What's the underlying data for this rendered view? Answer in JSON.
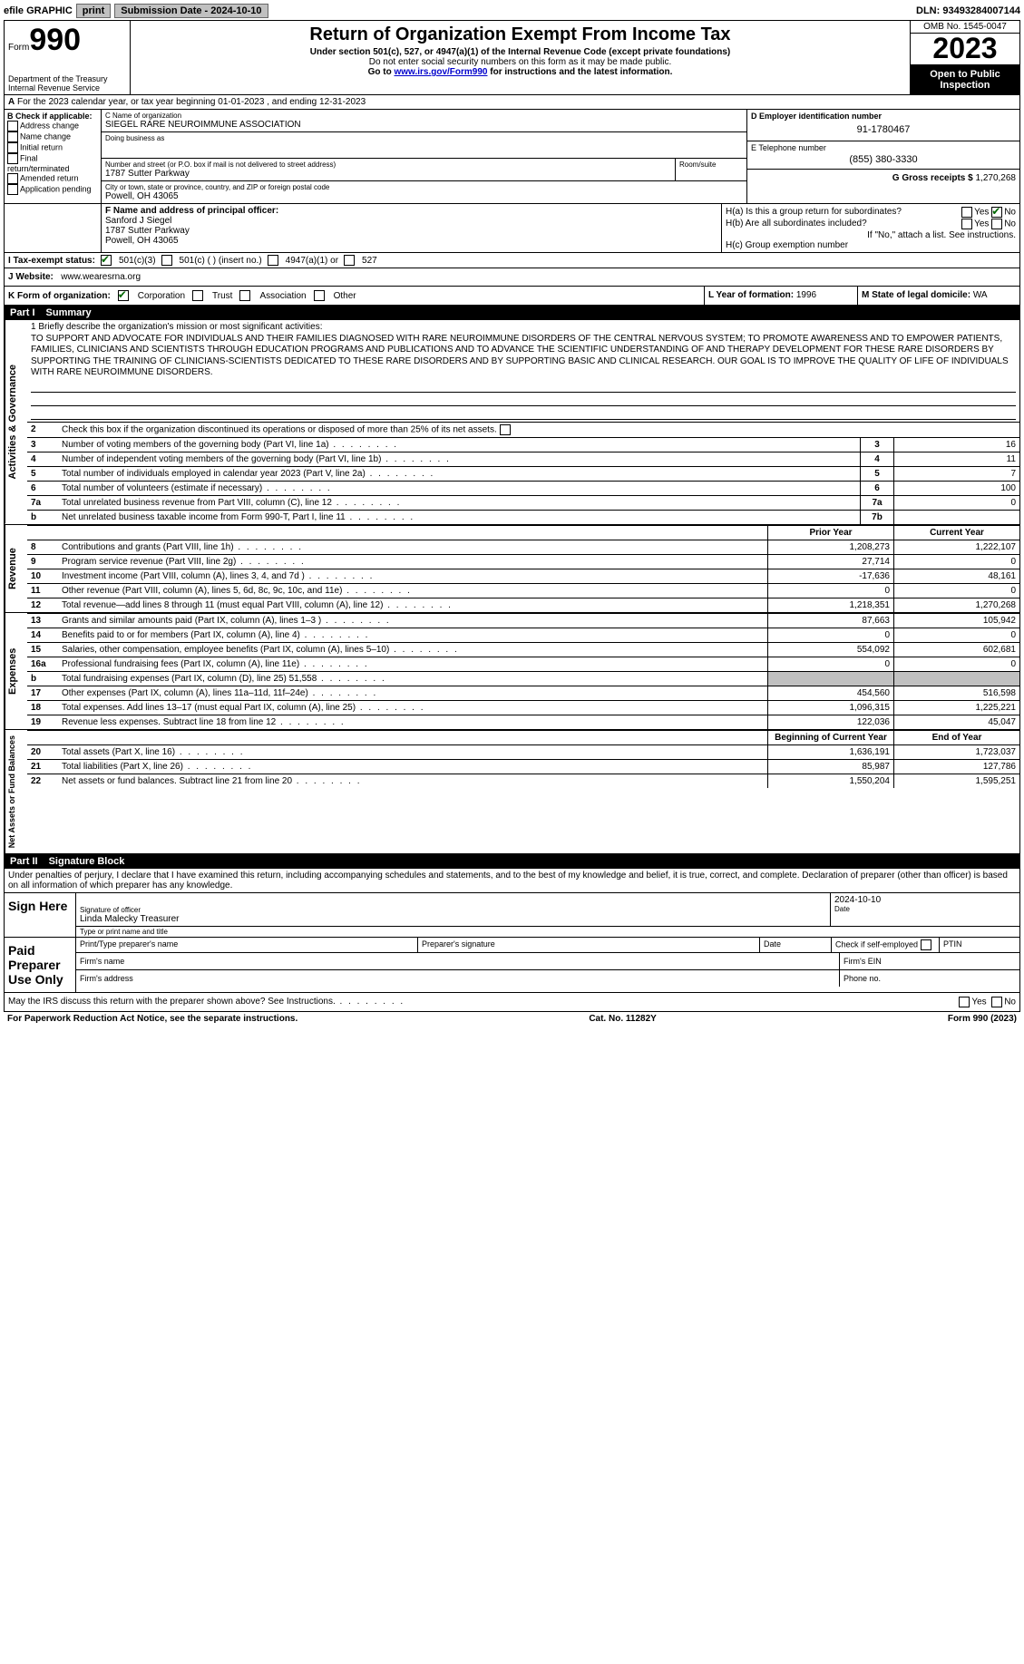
{
  "topbar": {
    "efile": "efile GRAPHIC",
    "print": "print",
    "sub_label": "Submission Date - 2024-10-10",
    "dln": "DLN: 93493284007144"
  },
  "header": {
    "form_word": "Form",
    "form_num": "990",
    "dept": "Department of the Treasury\nInternal Revenue Service",
    "title": "Return of Organization Exempt From Income Tax",
    "sub": "Under section 501(c), 527, or 4947(a)(1) of the Internal Revenue Code (except private foundations)",
    "warn": "Do not enter social security numbers on this form as it may be made public.",
    "goto_pre": "Go to ",
    "goto_link": "www.irs.gov/Form990",
    "goto_post": " for instructions and the latest information.",
    "omb": "OMB No. 1545-0047",
    "year": "2023",
    "open": "Open to Public Inspection"
  },
  "line_a": "For the 2023 calendar year, or tax year beginning 01-01-2023  , and ending 12-31-2023",
  "box_b": {
    "header": "B Check if applicable:",
    "items": [
      "Address change",
      "Name change",
      "Initial return",
      "Final return/terminated",
      "Amended return",
      "Application pending"
    ]
  },
  "box_c": {
    "label_name": "C Name of organization",
    "name": "SIEGEL RARE NEUROIMMUNE ASSOCIATION",
    "dba_label": "Doing business as",
    "dba": "",
    "street_label": "Number and street (or P.O. box if mail is not delivered to street address)",
    "room_label": "Room/suite",
    "street": "1787 Sutter Parkway",
    "city_label": "City or town, state or province, country, and ZIP or foreign postal code",
    "city": "Powell, OH  43065"
  },
  "box_d": {
    "label": "D Employer identification number",
    "value": "91-1780467"
  },
  "box_e": {
    "label": "E Telephone number",
    "value": "(855) 380-3330"
  },
  "box_g": {
    "label": "G Gross receipts $",
    "value": "1,270,268"
  },
  "box_f": {
    "label": "F  Name and address of principal officer:",
    "name": "Sanford J Siegel",
    "addr1": "1787 Sutter Parkway",
    "addr2": "Powell, OH  43065"
  },
  "box_h": {
    "a_q": "H(a)  Is this a group return for subordinates?",
    "b_q": "H(b)  Are all subordinates included?",
    "b_note": "If \"No,\" attach a list. See instructions.",
    "c_q": "H(c)  Group exemption number",
    "yes": "Yes",
    "no": "No"
  },
  "line_i": {
    "label": "I  Tax-exempt status:",
    "o1": "501(c)(3)",
    "o2": "501(c) (  ) (insert no.)",
    "o3": "4947(a)(1) or",
    "o4": "527"
  },
  "line_j": {
    "label": "J  Website:",
    "value": "www.wearesrna.org"
  },
  "line_k": {
    "label": "K Form of organization:",
    "o1": "Corporation",
    "o2": "Trust",
    "o3": "Association",
    "o4": "Other"
  },
  "line_l": {
    "label": "L Year of formation:",
    "value": "1996"
  },
  "line_m": {
    "label": "M State of legal domicile:",
    "value": "WA"
  },
  "part1": {
    "num": "Part I",
    "title": "Summary"
  },
  "mission": {
    "prompt": "1  Briefly describe the organization's mission or most significant activities:",
    "text": "TO SUPPORT AND ADVOCATE FOR INDIVIDUALS AND THEIR FAMILIES DIAGNOSED WITH RARE NEUROIMMUNE DISORDERS OF THE CENTRAL NERVOUS SYSTEM; TO PROMOTE AWARENESS AND TO EMPOWER PATIENTS, FAMILIES, CLINICIANS AND SCIENTISTS THROUGH EDUCATION PROGRAMS AND PUBLICATIONS AND TO ADVANCE THE SCIENTIFIC UNDERSTANDING OF AND THERAPY DEVELOPMENT FOR THESE RARE DISORDERS BY SUPPORTING THE TRAINING OF CLINICIANS-SCIENTISTS DEDICATED TO THESE RARE DISORDERS AND BY SUPPORTING BASIC AND CLINICAL RESEARCH. OUR GOAL IS TO IMPROVE THE QUALITY OF LIFE OF INDIVIDUALS WITH RARE NEUROIMMUNE DISORDERS."
  },
  "line2": "Check this box      if the organization discontinued its operations or disposed of more than 25% of its net assets.",
  "sections": {
    "gov": "Activities & Governance",
    "rev": "Revenue",
    "exp": "Expenses",
    "net": "Net Assets or Fund Balances"
  },
  "gov_lines": [
    {
      "n": "3",
      "d": "Number of voting members of the governing body (Part VI, line 1a)",
      "b": "3",
      "v": "16"
    },
    {
      "n": "4",
      "d": "Number of independent voting members of the governing body (Part VI, line 1b)",
      "b": "4",
      "v": "11"
    },
    {
      "n": "5",
      "d": "Total number of individuals employed in calendar year 2023 (Part V, line 2a)",
      "b": "5",
      "v": "7"
    },
    {
      "n": "6",
      "d": "Total number of volunteers (estimate if necessary)",
      "b": "6",
      "v": "100"
    },
    {
      "n": "7a",
      "d": "Total unrelated business revenue from Part VIII, column (C), line 12",
      "b": "7a",
      "v": "0"
    },
    {
      "n": "b",
      "d": "Net unrelated business taxable income from Form 990-T, Part I, line 11",
      "b": "7b",
      "v": ""
    }
  ],
  "col_headers": {
    "prior": "Prior Year",
    "current": "Current Year",
    "bcy": "Beginning of Current Year",
    "eoy": "End of Year"
  },
  "rev_lines": [
    {
      "n": "8",
      "d": "Contributions and grants (Part VIII, line 1h)",
      "p": "1,208,273",
      "c": "1,222,107"
    },
    {
      "n": "9",
      "d": "Program service revenue (Part VIII, line 2g)",
      "p": "27,714",
      "c": "0"
    },
    {
      "n": "10",
      "d": "Investment income (Part VIII, column (A), lines 3, 4, and 7d )",
      "p": "-17,636",
      "c": "48,161"
    },
    {
      "n": "11",
      "d": "Other revenue (Part VIII, column (A), lines 5, 6d, 8c, 9c, 10c, and 11e)",
      "p": "0",
      "c": "0"
    },
    {
      "n": "12",
      "d": "Total revenue—add lines 8 through 11 (must equal Part VIII, column (A), line 12)",
      "p": "1,218,351",
      "c": "1,270,268"
    }
  ],
  "exp_lines": [
    {
      "n": "13",
      "d": "Grants and similar amounts paid (Part IX, column (A), lines 1–3 )",
      "p": "87,663",
      "c": "105,942"
    },
    {
      "n": "14",
      "d": "Benefits paid to or for members (Part IX, column (A), line 4)",
      "p": "0",
      "c": "0"
    },
    {
      "n": "15",
      "d": "Salaries, other compensation, employee benefits (Part IX, column (A), lines 5–10)",
      "p": "554,092",
      "c": "602,681"
    },
    {
      "n": "16a",
      "d": "Professional fundraising fees (Part IX, column (A), line 11e)",
      "p": "0",
      "c": "0"
    },
    {
      "n": "b",
      "d": "Total fundraising expenses (Part IX, column (D), line 25) 51,558",
      "p": "gray",
      "c": "gray"
    },
    {
      "n": "17",
      "d": "Other expenses (Part IX, column (A), lines 11a–11d, 11f–24e)",
      "p": "454,560",
      "c": "516,598"
    },
    {
      "n": "18",
      "d": "Total expenses. Add lines 13–17 (must equal Part IX, column (A), line 25)",
      "p": "1,096,315",
      "c": "1,225,221"
    },
    {
      "n": "19",
      "d": "Revenue less expenses. Subtract line 18 from line 12",
      "p": "122,036",
      "c": "45,047"
    }
  ],
  "net_lines": [
    {
      "n": "20",
      "d": "Total assets (Part X, line 16)",
      "p": "1,636,191",
      "c": "1,723,037"
    },
    {
      "n": "21",
      "d": "Total liabilities (Part X, line 26)",
      "p": "85,987",
      "c": "127,786"
    },
    {
      "n": "22",
      "d": "Net assets or fund balances. Subtract line 21 from line 20",
      "p": "1,550,204",
      "c": "1,595,251"
    }
  ],
  "part2": {
    "num": "Part II",
    "title": "Signature Block"
  },
  "sig": {
    "decl": "Under penalties of perjury, I declare that I have examined this return, including accompanying schedules and statements, and to the best of my knowledge and belief, it is true, correct, and complete. Declaration of preparer (other than officer) is based on all information of which preparer has any knowledge.",
    "sign_here": "Sign Here",
    "sig_officer": "Signature of officer",
    "officer": "Linda Malecky  Treasurer",
    "type_label": "Type or print name and title",
    "date_label": "Date",
    "date": "2024-10-10",
    "paid": "Paid Preparer Use Only",
    "print_name": "Print/Type preparer's name",
    "prep_sig": "Preparer's signature",
    "check_self": "Check        if self-employed",
    "ptin": "PTIN",
    "firm_name": "Firm's name",
    "firm_ein": "Firm's EIN",
    "firm_addr": "Firm's address",
    "phone": "Phone no.",
    "may_discuss": "May the IRS discuss this return with the preparer shown above? See Instructions."
  },
  "footer": {
    "left": "For Paperwork Reduction Act Notice, see the separate instructions.",
    "mid": "Cat. No. 11282Y",
    "right": "Form 990 (2023)"
  }
}
